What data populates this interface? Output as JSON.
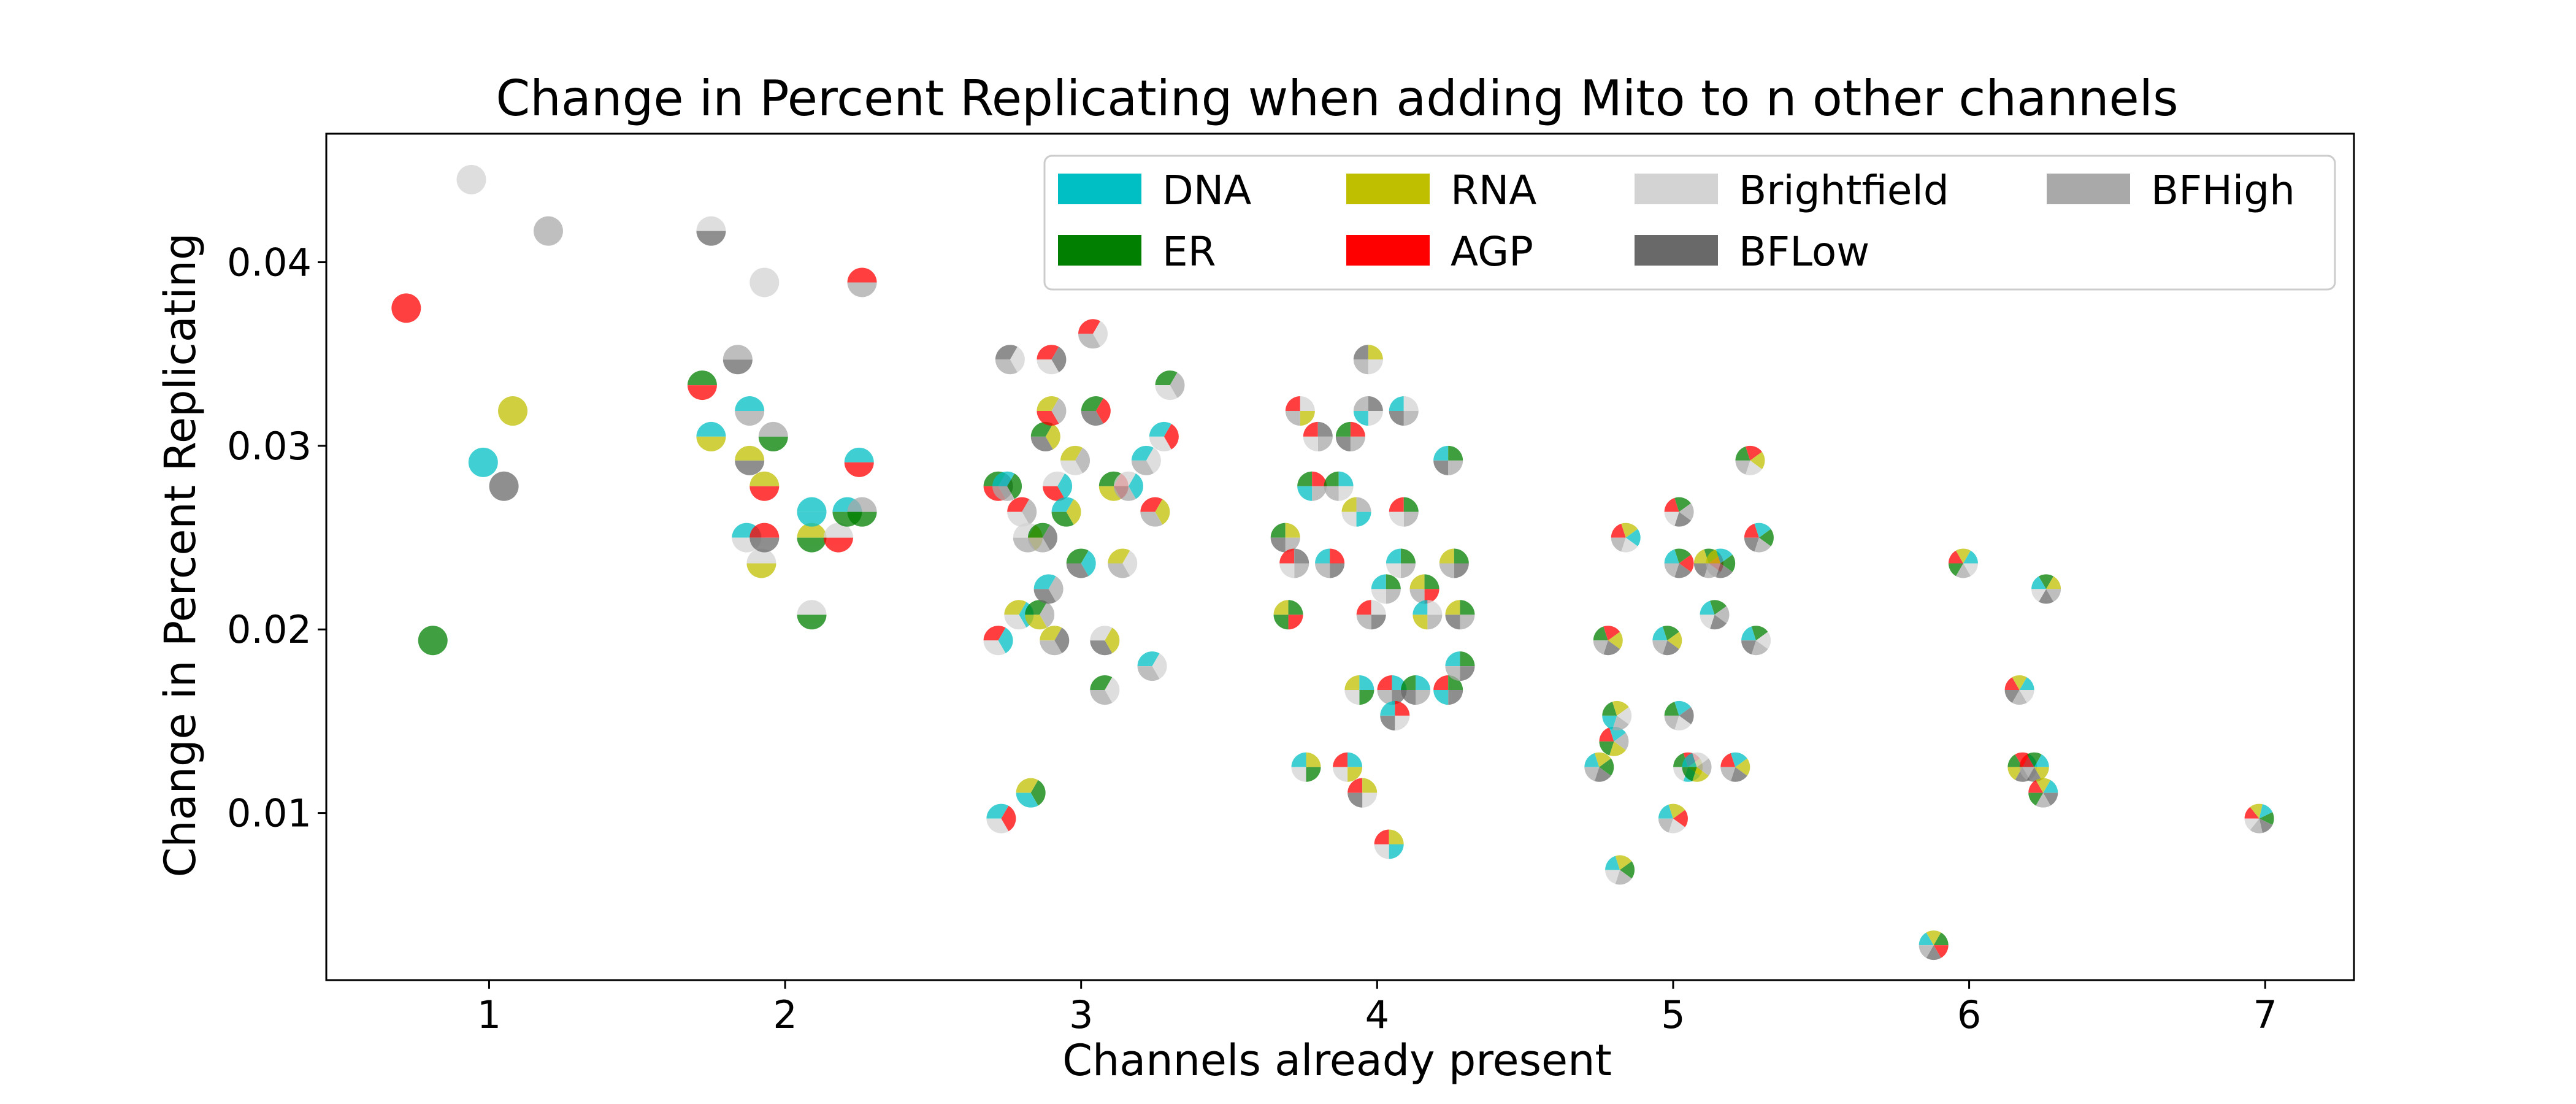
{
  "chart_data": {
    "type": "scatter",
    "title": "Change in Percent Replicating when adding Mito to n other channels",
    "xlabel": "Channels already present",
    "ylabel": "Change in Percent Replicating",
    "xlim": [
      0.45,
      7.3
    ],
    "ylim": [
      0.0009,
      0.047
    ],
    "xticks": [
      "1",
      "2",
      "3",
      "4",
      "5",
      "6",
      "7"
    ],
    "yticks": [
      "0.01",
      "0.02",
      "0.03",
      "0.04"
    ],
    "grid": false,
    "legend_position": "top-right",
    "channels": {
      "DNA": "#00bfc4",
      "ER": "#007f00",
      "RNA": "#bfbf00",
      "AGP": "#ff0000",
      "Brightfield": "#d3d3d3",
      "BFLow": "#696969",
      "BFHigh": "#a9a9a9"
    },
    "legend": [
      {
        "name": "DNA",
        "color": "#00bfc4"
      },
      {
        "name": "RNA",
        "color": "#bfbf00"
      },
      {
        "name": "Brightfield",
        "color": "#d3d3d3"
      },
      {
        "name": "BFHigh",
        "color": "#a9a9a9"
      },
      {
        "name": "ER",
        "color": "#007f00"
      },
      {
        "name": "AGP",
        "color": "#ff0000"
      },
      {
        "name": "BFLow",
        "color": "#696969"
      }
    ],
    "points": [
      {
        "x": 0.72,
        "y": 0.0375,
        "channels": [
          "AGP"
        ]
      },
      {
        "x": 0.81,
        "y": 0.0194,
        "channels": [
          "ER"
        ]
      },
      {
        "x": 0.94,
        "y": 0.0445,
        "channels": [
          "Brightfield"
        ]
      },
      {
        "x": 0.98,
        "y": 0.0291,
        "channels": [
          "DNA"
        ]
      },
      {
        "x": 1.05,
        "y": 0.0278,
        "channels": [
          "BFLow"
        ]
      },
      {
        "x": 1.08,
        "y": 0.0319,
        "channels": [
          "RNA"
        ]
      },
      {
        "x": 1.2,
        "y": 0.0417,
        "channels": [
          "BFHigh"
        ]
      },
      {
        "x": 1.72,
        "y": 0.0333,
        "channels": [
          "ER",
          "AGP"
        ]
      },
      {
        "x": 1.75,
        "y": 0.0305,
        "channels": [
          "DNA",
          "RNA"
        ]
      },
      {
        "x": 1.75,
        "y": 0.0417,
        "channels": [
          "Brightfield",
          "BFLow"
        ]
      },
      {
        "x": 1.84,
        "y": 0.0347,
        "channels": [
          "BFHigh",
          "BFLow"
        ]
      },
      {
        "x": 1.87,
        "y": 0.025,
        "channels": [
          "DNA",
          "Brightfield"
        ]
      },
      {
        "x": 1.88,
        "y": 0.0319,
        "channels": [
          "DNA",
          "BFHigh"
        ]
      },
      {
        "x": 1.88,
        "y": 0.0292,
        "channels": [
          "RNA",
          "BFLow"
        ]
      },
      {
        "x": 1.92,
        "y": 0.0236,
        "channels": [
          "Brightfield",
          "RNA"
        ]
      },
      {
        "x": 1.93,
        "y": 0.025,
        "channels": [
          "AGP",
          "BFLow"
        ]
      },
      {
        "x": 1.93,
        "y": 0.0278,
        "channels": [
          "RNA",
          "AGP"
        ]
      },
      {
        "x": 1.93,
        "y": 0.0389,
        "channels": [
          "Brightfield",
          "Brightfield"
        ]
      },
      {
        "x": 1.96,
        "y": 0.0305,
        "channels": [
          "BFHigh",
          "ER"
        ]
      },
      {
        "x": 2.09,
        "y": 0.025,
        "channels": [
          "RNA",
          "ER"
        ]
      },
      {
        "x": 2.09,
        "y": 0.0208,
        "channels": [
          "Brightfield",
          "ER"
        ]
      },
      {
        "x": 2.09,
        "y": 0.0264,
        "channels": [
          "DNA",
          "DNA"
        ]
      },
      {
        "x": 2.18,
        "y": 0.025,
        "channels": [
          "Brightfield",
          "AGP"
        ]
      },
      {
        "x": 2.21,
        "y": 0.0264,
        "channels": [
          "DNA",
          "ER"
        ]
      },
      {
        "x": 2.25,
        "y": 0.0291,
        "channels": [
          "DNA",
          "AGP"
        ]
      },
      {
        "x": 2.26,
        "y": 0.0389,
        "channels": [
          "AGP",
          "BFHigh"
        ]
      },
      {
        "x": 2.26,
        "y": 0.0264,
        "channels": [
          "BFHigh",
          "ER"
        ]
      },
      {
        "x": 2.72,
        "y": 0.0278,
        "channels": [
          "ER",
          "BFLow",
          "AGP"
        ]
      },
      {
        "x": 2.72,
        "y": 0.0194,
        "channels": [
          "AGP",
          "DNA",
          "Brightfield"
        ]
      },
      {
        "x": 2.73,
        "y": 0.0097,
        "channels": [
          "DNA",
          "AGP",
          "Brightfield"
        ]
      },
      {
        "x": 2.75,
        "y": 0.0278,
        "channels": [
          "DNA",
          "ER",
          "BFHigh"
        ]
      },
      {
        "x": 2.76,
        "y": 0.0347,
        "channels": [
          "BFLow",
          "Brightfield",
          "BFHigh"
        ]
      },
      {
        "x": 2.79,
        "y": 0.0208,
        "channels": [
          "RNA",
          "DNA",
          "Brightfield"
        ]
      },
      {
        "x": 2.8,
        "y": 0.0264,
        "channels": [
          "AGP",
          "BFHigh",
          "Brightfield"
        ]
      },
      {
        "x": 2.82,
        "y": 0.025,
        "channels": [
          "Brightfield",
          "RNA",
          "BFHigh"
        ]
      },
      {
        "x": 2.83,
        "y": 0.0111,
        "channels": [
          "RNA",
          "ER",
          "DNA"
        ]
      },
      {
        "x": 2.86,
        "y": 0.0208,
        "channels": [
          "ER",
          "BFHigh",
          "RNA"
        ]
      },
      {
        "x": 2.87,
        "y": 0.025,
        "channels": [
          "ER",
          "BFLow",
          "BFHigh"
        ]
      },
      {
        "x": 2.88,
        "y": 0.0305,
        "channels": [
          "ER",
          "RNA",
          "BFLow"
        ]
      },
      {
        "x": 2.89,
        "y": 0.0222,
        "channels": [
          "DNA",
          "BFHigh",
          "BFLow"
        ]
      },
      {
        "x": 2.9,
        "y": 0.0347,
        "channels": [
          "AGP",
          "BFLow",
          "Brightfield"
        ]
      },
      {
        "x": 2.9,
        "y": 0.0319,
        "channels": [
          "RNA",
          "BFHigh",
          "AGP"
        ]
      },
      {
        "x": 2.91,
        "y": 0.0194,
        "channels": [
          "RNA",
          "BFLow",
          "BFHigh"
        ]
      },
      {
        "x": 2.92,
        "y": 0.0278,
        "channels": [
          "Brightfield",
          "DNA",
          "AGP"
        ]
      },
      {
        "x": 2.95,
        "y": 0.0264,
        "channels": [
          "DNA",
          "RNA",
          "ER"
        ]
      },
      {
        "x": 2.98,
        "y": 0.0292,
        "channels": [
          "RNA",
          "BFHigh",
          "Brightfield"
        ]
      },
      {
        "x": 3.0,
        "y": 0.0236,
        "channels": [
          "ER",
          "DNA",
          "BFLow"
        ]
      },
      {
        "x": 3.04,
        "y": 0.0361,
        "channels": [
          "AGP",
          "Brightfield",
          "BFHigh"
        ]
      },
      {
        "x": 3.05,
        "y": 0.0319,
        "channels": [
          "ER",
          "AGP",
          "BFLow"
        ]
      },
      {
        "x": 3.08,
        "y": 0.0194,
        "channels": [
          "Brightfield",
          "RNA",
          "BFLow"
        ]
      },
      {
        "x": 3.08,
        "y": 0.0167,
        "channels": [
          "ER",
          "Brightfield",
          "BFHigh"
        ]
      },
      {
        "x": 3.11,
        "y": 0.0278,
        "channels": [
          "ER",
          "AGP",
          "RNA"
        ]
      },
      {
        "x": 3.14,
        "y": 0.0236,
        "channels": [
          "RNA",
          "Brightfield",
          "BFHigh"
        ]
      },
      {
        "x": 3.16,
        "y": 0.0278,
        "channels": [
          "Brightfield",
          "DNA",
          "BFHigh"
        ]
      },
      {
        "x": 3.22,
        "y": 0.0292,
        "channels": [
          "DNA",
          "Brightfield",
          "BFHigh"
        ]
      },
      {
        "x": 3.24,
        "y": 0.018,
        "channels": [
          "DNA",
          "Brightfield",
          "BFHigh"
        ]
      },
      {
        "x": 3.25,
        "y": 0.0264,
        "channels": [
          "AGP",
          "RNA",
          "BFHigh"
        ]
      },
      {
        "x": 3.28,
        "y": 0.0305,
        "channels": [
          "DNA",
          "AGP",
          "Brightfield"
        ]
      },
      {
        "x": 3.3,
        "y": 0.0333,
        "channels": [
          "ER",
          "BFHigh",
          "Brightfield"
        ]
      },
      {
        "x": 3.69,
        "y": 0.025,
        "channels": [
          "ER",
          "RNA",
          "BFHigh",
          "BFLow"
        ]
      },
      {
        "x": 3.7,
        "y": 0.0208,
        "channels": [
          "RNA",
          "ER",
          "AGP",
          "ER"
        ]
      },
      {
        "x": 3.72,
        "y": 0.0236,
        "channels": [
          "AGP",
          "BFLow",
          "BFHigh",
          "Brightfield"
        ]
      },
      {
        "x": 3.74,
        "y": 0.0319,
        "channels": [
          "AGP",
          "Brightfield",
          "RNA",
          "BFHigh"
        ]
      },
      {
        "x": 3.76,
        "y": 0.0125,
        "channels": [
          "DNA",
          "RNA",
          "ER",
          "Brightfield"
        ]
      },
      {
        "x": 3.78,
        "y": 0.0278,
        "channels": [
          "ER",
          "AGP",
          "BFHigh",
          "DNA"
        ]
      },
      {
        "x": 3.8,
        "y": 0.0305,
        "channels": [
          "AGP",
          "BFLow",
          "BFHigh",
          "Brightfield"
        ]
      },
      {
        "x": 3.84,
        "y": 0.0236,
        "channels": [
          "DNA",
          "AGP",
          "BFLow",
          "BFHigh"
        ]
      },
      {
        "x": 3.87,
        "y": 0.0278,
        "channels": [
          "ER",
          "DNA",
          "Brightfield",
          "BFHigh"
        ]
      },
      {
        "x": 3.9,
        "y": 0.0125,
        "channels": [
          "AGP",
          "DNA",
          "RNA",
          "Brightfield"
        ]
      },
      {
        "x": 3.91,
        "y": 0.0305,
        "channels": [
          "ER",
          "AGP",
          "BFHigh",
          "BFLow"
        ]
      },
      {
        "x": 3.93,
        "y": 0.0264,
        "channels": [
          "RNA",
          "BFHigh",
          "DNA",
          "Brightfield"
        ]
      },
      {
        "x": 3.94,
        "y": 0.0167,
        "channels": [
          "RNA",
          "DNA",
          "ER",
          "Brightfield"
        ]
      },
      {
        "x": 3.95,
        "y": 0.0111,
        "channels": [
          "AGP",
          "RNA",
          "Brightfield",
          "BFLow"
        ]
      },
      {
        "x": 3.97,
        "y": 0.0347,
        "channels": [
          "BFLow",
          "RNA",
          "Brightfield",
          "BFHigh"
        ]
      },
      {
        "x": 3.97,
        "y": 0.0319,
        "channels": [
          "BFHigh",
          "BFLow",
          "Brightfield",
          "DNA"
        ]
      },
      {
        "x": 3.98,
        "y": 0.0208,
        "channels": [
          "AGP",
          "Brightfield",
          "BFLow",
          "BFHigh"
        ]
      },
      {
        "x": 4.03,
        "y": 0.0222,
        "channels": [
          "DNA",
          "ER",
          "BFHigh",
          "Brightfield"
        ]
      },
      {
        "x": 4.04,
        "y": 0.0083,
        "channels": [
          "AGP",
          "RNA",
          "DNA",
          "Brightfield"
        ]
      },
      {
        "x": 4.05,
        "y": 0.0167,
        "channels": [
          "AGP",
          "DNA",
          "BFLow",
          "BFHigh"
        ]
      },
      {
        "x": 4.06,
        "y": 0.0153,
        "channels": [
          "DNA",
          "AGP",
          "Brightfield",
          "BFLow"
        ]
      },
      {
        "x": 4.08,
        "y": 0.0236,
        "channels": [
          "DNA",
          "ER",
          "BFHigh",
          "Brightfield"
        ]
      },
      {
        "x": 4.09,
        "y": 0.0264,
        "channels": [
          "AGP",
          "ER",
          "BFHigh",
          "Brightfield"
        ]
      },
      {
        "x": 4.09,
        "y": 0.0319,
        "channels": [
          "DNA",
          "Brightfield",
          "BFHigh",
          "BFLow"
        ]
      },
      {
        "x": 4.13,
        "y": 0.0167,
        "channels": [
          "ER",
          "DNA",
          "BFHigh",
          "BFLow"
        ]
      },
      {
        "x": 4.16,
        "y": 0.0222,
        "channels": [
          "RNA",
          "ER",
          "AGP",
          "BFHigh"
        ]
      },
      {
        "x": 4.17,
        "y": 0.0208,
        "channels": [
          "DNA",
          "Brightfield",
          "BFHigh",
          "RNA"
        ]
      },
      {
        "x": 4.24,
        "y": 0.0167,
        "channels": [
          "AGP",
          "ER",
          "BFLow",
          "DNA"
        ]
      },
      {
        "x": 4.24,
        "y": 0.0292,
        "channels": [
          "DNA",
          "ER",
          "BFHigh",
          "BFLow"
        ]
      },
      {
        "x": 4.26,
        "y": 0.0236,
        "channels": [
          "RNA",
          "ER",
          "BFLow",
          "BFHigh"
        ]
      },
      {
        "x": 4.28,
        "y": 0.0208,
        "channels": [
          "RNA",
          "ER",
          "BFHigh",
          "BFLow"
        ]
      },
      {
        "x": 4.28,
        "y": 0.018,
        "channels": [
          "DNA",
          "ER",
          "BFLow",
          "BFHigh"
        ]
      },
      {
        "x": 4.75,
        "y": 0.0125,
        "channels": [
          "DNA",
          "RNA",
          "ER",
          "BFLow",
          "BFHigh"
        ]
      },
      {
        "x": 4.78,
        "y": 0.0194,
        "channels": [
          "ER",
          "AGP",
          "RNA",
          "BFLow",
          "BFHigh"
        ]
      },
      {
        "x": 4.8,
        "y": 0.0139,
        "channels": [
          "AGP",
          "DNA",
          "BFHigh",
          "RNA",
          "ER"
        ]
      },
      {
        "x": 4.81,
        "y": 0.0153,
        "channels": [
          "ER",
          "RNA",
          "Brightfield",
          "BFHigh",
          "DNA"
        ]
      },
      {
        "x": 4.82,
        "y": 0.0069,
        "channels": [
          "DNA",
          "RNA",
          "ER",
          "BFHigh",
          "Brightfield"
        ]
      },
      {
        "x": 4.84,
        "y": 0.025,
        "channels": [
          "AGP",
          "RNA",
          "DNA",
          "Brightfield",
          "BFHigh"
        ]
      },
      {
        "x": 4.98,
        "y": 0.0194,
        "channels": [
          "DNA",
          "ER",
          "RNA",
          "BFLow",
          "BFHigh"
        ]
      },
      {
        "x": 5.0,
        "y": 0.0097,
        "channels": [
          "DNA",
          "RNA",
          "AGP",
          "Brightfield",
          "BFHigh"
        ]
      },
      {
        "x": 5.02,
        "y": 0.0153,
        "channels": [
          "ER",
          "DNA",
          "BFLow",
          "Brightfield",
          "BFHigh"
        ]
      },
      {
        "x": 5.02,
        "y": 0.0264,
        "channels": [
          "AGP",
          "ER",
          "BFHigh",
          "BFLow",
          "Brightfield"
        ]
      },
      {
        "x": 5.02,
        "y": 0.0236,
        "channels": [
          "DNA",
          "ER",
          "AGP",
          "BFLow",
          "BFHigh"
        ]
      },
      {
        "x": 5.05,
        "y": 0.0125,
        "channels": [
          "ER",
          "AGP",
          "RNA",
          "DNA",
          "Brightfield"
        ]
      },
      {
        "x": 5.08,
        "y": 0.0125,
        "channels": [
          "DNA",
          "Brightfield",
          "BFHigh",
          "RNA",
          "ER"
        ]
      },
      {
        "x": 5.12,
        "y": 0.0236,
        "channels": [
          "RNA",
          "ER",
          "AGP",
          "BFHigh",
          "BFLow"
        ]
      },
      {
        "x": 5.14,
        "y": 0.0208,
        "channels": [
          "DNA",
          "ER",
          "BFHigh",
          "BFLow",
          "Brightfield"
        ]
      },
      {
        "x": 5.16,
        "y": 0.0236,
        "channels": [
          "RNA",
          "DNA",
          "ER",
          "BFLow",
          "BFHigh"
        ]
      },
      {
        "x": 5.21,
        "y": 0.0125,
        "channels": [
          "AGP",
          "DNA",
          "RNA",
          "BFLow",
          "BFHigh"
        ]
      },
      {
        "x": 5.26,
        "y": 0.0292,
        "channels": [
          "ER",
          "AGP",
          "RNA",
          "Brightfield",
          "BFHigh"
        ]
      },
      {
        "x": 5.28,
        "y": 0.0194,
        "channels": [
          "DNA",
          "ER",
          "Brightfield",
          "BFHigh",
          "BFLow"
        ]
      },
      {
        "x": 5.29,
        "y": 0.025,
        "channels": [
          "AGP",
          "DNA",
          "ER",
          "BFHigh",
          "BFLow"
        ]
      },
      {
        "x": 5.88,
        "y": 0.0028,
        "channels": [
          "DNA",
          "RNA",
          "ER",
          "AGP",
          "BFLow",
          "BFHigh"
        ]
      },
      {
        "x": 5.98,
        "y": 0.0236,
        "channels": [
          "AGP",
          "RNA",
          "DNA",
          "Brightfield",
          "BFHigh",
          "ER"
        ]
      },
      {
        "x": 6.17,
        "y": 0.0167,
        "channels": [
          "AGP",
          "RNA",
          "DNA",
          "Brightfield",
          "BFHigh",
          "BFLow"
        ]
      },
      {
        "x": 6.18,
        "y": 0.0125,
        "channels": [
          "ER",
          "AGP",
          "DNA",
          "Brightfield",
          "BFLow",
          "RNA"
        ]
      },
      {
        "x": 6.22,
        "y": 0.0125,
        "channels": [
          "AGP",
          "ER",
          "DNA",
          "RNA",
          "BFLow",
          "BFHigh"
        ]
      },
      {
        "x": 6.25,
        "y": 0.0111,
        "channels": [
          "AGP",
          "RNA",
          "DNA",
          "BFLow",
          "BFHigh",
          "ER"
        ]
      },
      {
        "x": 6.26,
        "y": 0.0222,
        "channels": [
          "DNA",
          "ER",
          "RNA",
          "BFHigh",
          "BFLow",
          "Brightfield"
        ]
      },
      {
        "x": 6.98,
        "y": 0.0097,
        "channels": [
          "AGP",
          "RNA",
          "DNA",
          "ER",
          "BFLow",
          "BFHigh",
          "Brightfield"
        ]
      }
    ]
  }
}
